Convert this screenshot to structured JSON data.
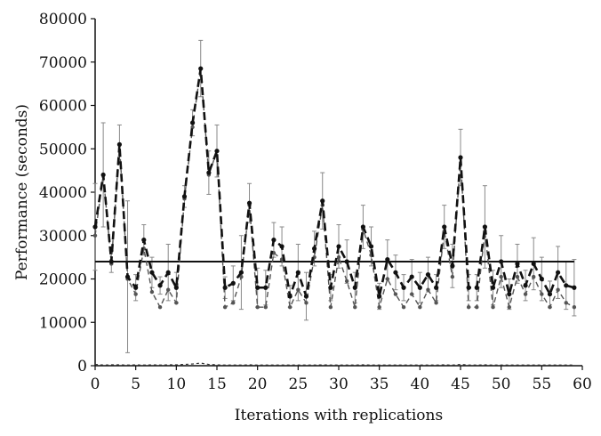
{
  "chart_data": {
    "type": "line",
    "title": "",
    "xlabel": "Iterations with replications",
    "ylabel": "Performance (seconds)",
    "xlim": [
      0,
      60
    ],
    "ylim": [
      0,
      80000
    ],
    "xticks": [
      0,
      5,
      10,
      15,
      20,
      25,
      30,
      35,
      40,
      45,
      50,
      55,
      60
    ],
    "yticks": [
      0,
      10000,
      20000,
      30000,
      40000,
      50000,
      60000,
      70000,
      80000
    ],
    "grid": false,
    "legend": "none",
    "x": [
      0,
      1,
      2,
      3,
      4,
      5,
      6,
      7,
      8,
      9,
      10,
      11,
      12,
      13,
      14,
      15,
      16,
      17,
      18,
      19,
      20,
      21,
      22,
      23,
      24,
      25,
      26,
      27,
      28,
      29,
      30,
      31,
      32,
      33,
      34,
      35,
      36,
      37,
      38,
      39,
      40,
      41,
      42,
      43,
      44,
      45,
      46,
      47,
      48,
      49,
      50,
      51,
      52,
      53,
      54,
      55,
      56,
      57,
      58,
      59
    ],
    "series": [
      {
        "style": "dashed-thick",
        "color": "#111111",
        "values": [
          32000,
          44000,
          24000,
          51000,
          20500,
          18000,
          29000,
          21500,
          18500,
          21500,
          18000,
          39000,
          56000,
          68500,
          44500,
          49500,
          18000,
          19000,
          21500,
          37500,
          18000,
          18000,
          29000,
          27500,
          16000,
          21500,
          16000,
          27000,
          38000,
          18000,
          27500,
          24000,
          18000,
          32000,
          27500,
          16000,
          24500,
          21500,
          18000,
          20500,
          18000,
          21000,
          18000,
          32000,
          23000,
          48000,
          18000,
          18000,
          32000,
          18000,
          24000,
          16500,
          23500,
          18500,
          23500,
          20000,
          16500,
          21500,
          18500,
          18000
        ]
      },
      {
        "style": "dashed-light",
        "color": "#555555",
        "values": [
          30000,
          44000,
          23500,
          51000,
          20000,
          16500,
          27000,
          17000,
          13500,
          17500,
          14500,
          38500,
          55000,
          68500,
          44000,
          49500,
          13500,
          14500,
          20500,
          37000,
          13500,
          13500,
          26000,
          24500,
          13500,
          17500,
          14500,
          25000,
          37000,
          13500,
          25000,
          19500,
          13500,
          31500,
          25500,
          13500,
          20000,
          16500,
          13500,
          16500,
          13500,
          17500,
          14500,
          31000,
          20500,
          48000,
          13500,
          13500,
          31000,
          13500,
          20500,
          13500,
          20500,
          16500,
          20500,
          16500,
          13500,
          17500,
          14500,
          13500
        ]
      },
      {
        "style": "dashed-thin",
        "color": "#333333",
        "values": [
          300,
          150,
          200,
          200,
          150,
          200,
          150,
          200,
          150,
          200,
          200,
          300,
          400,
          600,
          300,
          200,
          150,
          150,
          150,
          200,
          150,
          150,
          150,
          150,
          150,
          150,
          150,
          150,
          200,
          150,
          150,
          150,
          150,
          200,
          150,
          150,
          150,
          150,
          150,
          150,
          150,
          150,
          150,
          200,
          150,
          300,
          150,
          150,
          200,
          150,
          150,
          150,
          150,
          150,
          150,
          150,
          150,
          150,
          150,
          150
        ]
      }
    ],
    "error_bars": [
      10000,
      12000,
      2500,
      4500,
      17500,
      3000,
      3500,
      3500,
      2000,
      6500,
      3500,
      2500,
      3000,
      6500,
      5000,
      6000,
      2500,
      4000,
      8500,
      4500,
      4500,
      4000,
      4000,
      4500,
      2500,
      6500,
      5500,
      4000,
      6500,
      3000,
      5000,
      5000,
      3500,
      5000,
      4500,
      3000,
      4500,
      4000,
      3000,
      4000,
      3500,
      4000,
      3000,
      5000,
      5000,
      6500,
      3000,
      3000,
      9500,
      4000,
      6000,
      3500,
      4500,
      3500,
      6000,
      5000,
      3000,
      6000,
      5500,
      6500
    ],
    "reference_line": {
      "y": 24000,
      "x_range": [
        0,
        59
      ]
    }
  }
}
